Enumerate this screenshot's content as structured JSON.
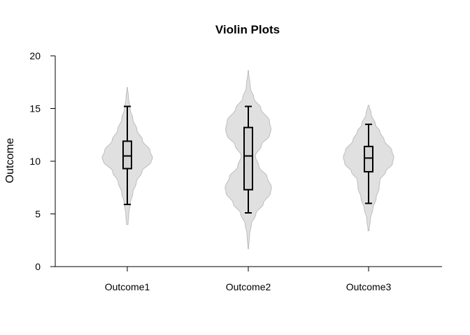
{
  "chart_data": {
    "type": "violin",
    "title": "Violin Plots",
    "xlabel": "",
    "ylabel": "Outcome",
    "ylim": [
      0,
      20
    ],
    "yticks": [
      0,
      5,
      10,
      15,
      20
    ],
    "categories": [
      "Outcome1",
      "Outcome2",
      "Outcome3"
    ],
    "fill_color": "#e0e0e0",
    "outline_color": "#bdbdbd",
    "box_fill": "#d3d3d3",
    "line_color": "#000000",
    "groups": [
      {
        "name": "Outcome1",
        "density_min": 4.0,
        "density_max": 17.0,
        "density": [
          [
            4.0,
            0.03
          ],
          [
            5.0,
            0.06
          ],
          [
            6.0,
            0.12
          ],
          [
            7.0,
            0.22
          ],
          [
            8.0,
            0.36
          ],
          [
            9.0,
            0.58
          ],
          [
            10.0,
            0.95
          ],
          [
            10.3,
            1.0
          ],
          [
            11.0,
            0.9
          ],
          [
            12.0,
            0.6
          ],
          [
            13.0,
            0.38
          ],
          [
            14.0,
            0.22
          ],
          [
            15.0,
            0.11
          ],
          [
            16.0,
            0.05
          ],
          [
            17.0,
            0.01
          ]
        ],
        "whisker_low": 5.9,
        "q1": 9.3,
        "median": 10.5,
        "q3": 11.9,
        "whisker_high": 15.2
      },
      {
        "name": "Outcome2",
        "density_min": 1.7,
        "density_max": 18.6,
        "density": [
          [
            1.7,
            0.01
          ],
          [
            3.0,
            0.05
          ],
          [
            4.0,
            0.12
          ],
          [
            5.0,
            0.3
          ],
          [
            6.0,
            0.6
          ],
          [
            7.0,
            0.88
          ],
          [
            7.5,
            0.92
          ],
          [
            8.5,
            0.75
          ],
          [
            9.5,
            0.42
          ],
          [
            10.5,
            0.28
          ],
          [
            11.5,
            0.52
          ],
          [
            12.5,
            0.85
          ],
          [
            13.0,
            0.9
          ],
          [
            13.8,
            0.84
          ],
          [
            15.0,
            0.5
          ],
          [
            16.0,
            0.22
          ],
          [
            17.0,
            0.08
          ],
          [
            18.6,
            0.01
          ]
        ],
        "whisker_low": 5.1,
        "q1": 7.3,
        "median": 10.5,
        "q3": 13.2,
        "whisker_high": 15.2
      },
      {
        "name": "Outcome3",
        "density_min": 3.4,
        "density_max": 15.3,
        "density": [
          [
            3.4,
            0.02
          ],
          [
            4.5,
            0.07
          ],
          [
            5.5,
            0.17
          ],
          [
            6.5,
            0.3
          ],
          [
            7.5,
            0.42
          ],
          [
            8.2,
            0.45
          ],
          [
            9.0,
            0.68
          ],
          [
            9.8,
            0.95
          ],
          [
            10.4,
            1.0
          ],
          [
            11.0,
            0.92
          ],
          [
            12.0,
            0.62
          ],
          [
            12.8,
            0.45
          ],
          [
            13.5,
            0.27
          ],
          [
            14.5,
            0.1
          ],
          [
            15.3,
            0.02
          ]
        ],
        "whisker_low": 6.0,
        "q1": 9.0,
        "median": 10.3,
        "q3": 11.4,
        "whisker_high": 13.5
      }
    ]
  }
}
